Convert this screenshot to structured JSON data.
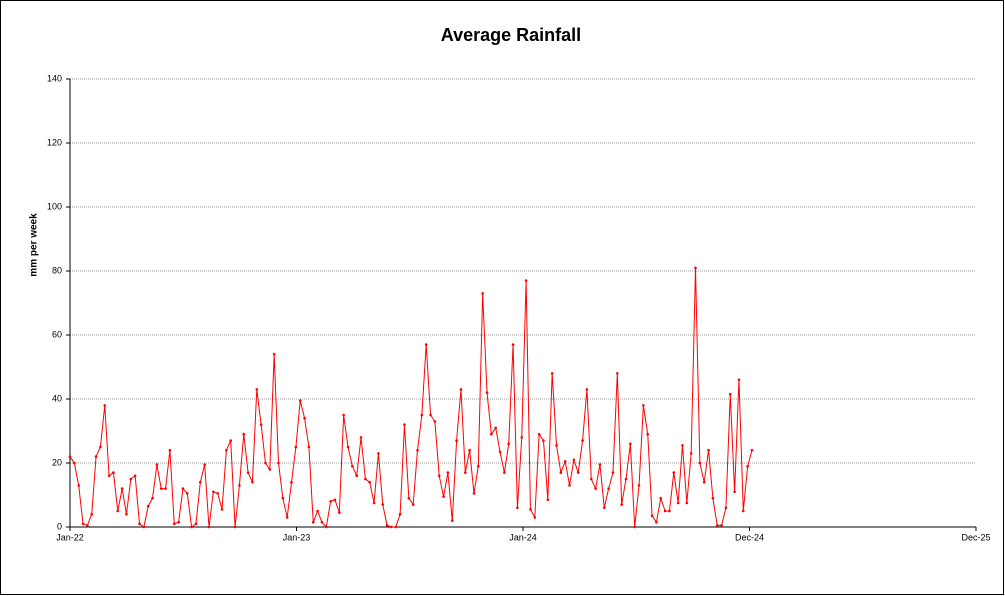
{
  "chart_data": {
    "type": "line",
    "title": "Average Rainfall",
    "ylabel": "mm per week",
    "color": "#ff0000",
    "grid": true,
    "x": [
      0,
      7,
      14,
      21,
      28,
      35,
      42,
      49,
      56,
      63,
      70,
      77,
      84,
      91,
      98,
      105,
      112,
      119,
      126,
      133,
      140,
      147,
      154,
      161,
      168,
      175,
      182,
      189,
      196,
      203,
      210,
      217,
      224,
      231,
      238,
      245,
      252,
      259,
      266,
      273,
      280,
      287,
      294,
      301,
      308,
      315,
      322,
      329,
      336,
      343,
      350,
      357,
      364,
      371,
      378,
      385,
      392,
      399,
      406,
      413,
      420,
      427,
      434,
      441,
      448,
      455,
      462,
      469,
      476,
      483,
      490,
      497,
      504,
      511,
      518,
      525,
      532,
      539,
      546,
      553,
      560,
      567,
      574,
      581,
      588,
      595,
      602,
      609,
      616,
      623,
      630,
      637,
      644,
      651,
      658,
      665,
      672,
      679,
      686,
      693,
      700,
      707,
      714,
      721,
      728,
      735,
      742,
      749,
      756,
      763,
      770,
      777,
      784,
      791,
      798,
      805,
      812,
      819,
      826,
      833,
      840,
      847,
      854,
      861,
      868,
      875,
      882,
      889,
      896,
      903,
      910,
      917,
      924,
      931,
      938,
      945,
      952,
      959,
      966,
      973,
      980,
      987,
      994,
      1001,
      1008,
      1015,
      1022,
      1029,
      1036,
      1043,
      1050,
      1057,
      1064,
      1071,
      1078,
      1085,
      1092,
      1099
    ],
    "values": [
      22,
      20,
      13,
      1,
      0.5,
      4,
      22,
      25,
      38,
      16,
      17,
      5,
      12,
      4,
      15,
      16,
      1,
      0,
      6.5,
      9,
      19.5,
      12,
      12,
      24,
      1,
      1.5,
      12,
      10.5,
      0,
      1,
      14,
      19.5,
      0,
      11,
      10.5,
      5.5,
      24,
      27,
      0,
      13,
      29,
      17,
      14,
      43,
      32,
      20,
      18,
      54,
      20,
      9,
      3,
      14,
      25,
      39.5,
      34,
      25,
      1.5,
      5,
      1.5,
      0,
      8,
      8.5,
      4.5,
      35,
      25,
      19,
      16,
      28,
      15,
      14,
      7.5,
      23,
      7,
      0.5,
      0,
      0,
      4,
      32,
      9,
      7,
      24,
      35,
      57,
      35,
      33,
      16,
      9.5,
      17,
      2,
      27,
      43,
      17,
      24,
      10.5,
      19,
      73,
      42,
      29,
      31,
      23.5,
      17,
      26,
      57,
      6,
      28,
      77,
      5.5,
      3,
      29,
      27,
      8.5,
      48,
      25.5,
      17,
      20.5,
      13,
      21,
      17,
      27,
      43,
      15,
      12,
      19.5,
      6,
      12,
      17,
      48,
      7,
      15,
      26,
      0,
      13,
      38,
      29,
      3.5,
      1.5,
      9,
      5,
      5,
      17,
      7.5,
      25.5,
      7.5,
      23,
      81,
      20,
      14,
      24,
      9,
      0.5,
      0.5,
      6,
      41.5,
      11,
      46,
      5,
      19,
      24
    ],
    "xlim": [
      0,
      1460
    ],
    "xticks": [
      {
        "value": 0,
        "label": "Jan-22"
      },
      {
        "value": 365,
        "label": "Jan-23"
      },
      {
        "value": 730,
        "label": "Jan-24"
      },
      {
        "value": 1095,
        "label": "Dec-24"
      },
      {
        "value": 1460,
        "label": "Dec-25"
      }
    ],
    "ylim": [
      0,
      140
    ],
    "yticks": [
      0,
      20,
      40,
      60,
      80,
      100,
      120,
      140
    ]
  }
}
